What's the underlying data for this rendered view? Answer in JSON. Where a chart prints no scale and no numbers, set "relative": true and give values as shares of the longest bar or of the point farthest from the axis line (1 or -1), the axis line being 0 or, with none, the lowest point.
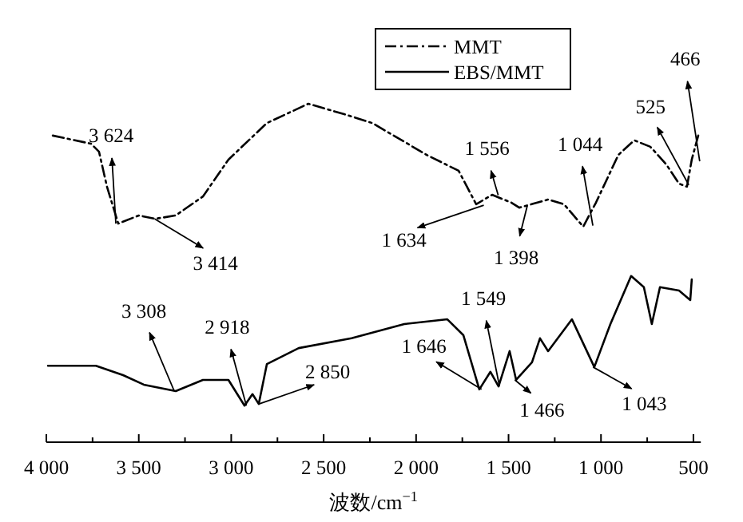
{
  "chart_data": {
    "type": "line",
    "relative": true,
    "xlabel": "波数/cm$^{−1}$",
    "xlim": [
      4000,
      460
    ],
    "xticks": [
      {
        "value": 4000,
        "label": "4 000"
      },
      {
        "value": 3750,
        "label": null
      },
      {
        "value": 3500,
        "label": "3 500"
      },
      {
        "value": 3250,
        "label": null
      },
      {
        "value": 3000,
        "label": "3 000"
      },
      {
        "value": 2750,
        "label": null
      },
      {
        "value": 2500,
        "label": "2 500"
      },
      {
        "value": 2250,
        "label": null
      },
      {
        "value": 2000,
        "label": "2 000"
      },
      {
        "value": 1750,
        "label": null
      },
      {
        "value": 1500,
        "label": "1 500"
      },
      {
        "value": 1250,
        "label": null
      },
      {
        "value": 1000,
        "label": "1 000"
      },
      {
        "value": 750,
        "label": null
      },
      {
        "value": 500,
        "label": "500"
      }
    ],
    "tick_labels": "x",
    "legend": "top",
    "series": [
      {
        "name": "MMT",
        "color": "#000000",
        "line_style": "dashdot",
        "x": [
          3965,
          3758,
          3715,
          3672,
          3611,
          3499,
          3412,
          3300,
          3153,
          3015,
          2807,
          2583,
          2375,
          2237,
          1943,
          1770,
          1675,
          1589,
          1485,
          1442,
          1286,
          1200,
          1096,
          1027,
          906,
          820,
          733,
          647,
          578,
          535,
          509,
          474
        ],
        "values": [
          0.906,
          0.882,
          0.858,
          0.755,
          0.646,
          0.67,
          0.66,
          0.67,
          0.726,
          0.835,
          0.943,
          1.0,
          0.967,
          0.943,
          0.849,
          0.802,
          0.703,
          0.731,
          0.708,
          0.693,
          0.717,
          0.703,
          0.637,
          0.708,
          0.849,
          0.892,
          0.873,
          0.821,
          0.764,
          0.755,
          0.835,
          0.906
        ]
      },
      {
        "name": "EBS/MMT",
        "color": "#000000",
        "line_style": "solid",
        "x": [
          3991,
          3732,
          3585,
          3473,
          3300,
          3153,
          3015,
          2928,
          2885,
          2851,
          2807,
          2635,
          2349,
          2064,
          1831,
          1744,
          1658,
          1598,
          1554,
          1494,
          1459,
          1373,
          1330,
          1286,
          1157,
          1036,
          949,
          837,
          768,
          725,
          681,
          578,
          517,
          509
        ],
        "values": [
          0.226,
          0.226,
          0.198,
          0.17,
          0.151,
          0.184,
          0.184,
          0.108,
          0.142,
          0.113,
          0.231,
          0.278,
          0.307,
          0.349,
          0.363,
          0.316,
          0.156,
          0.208,
          0.165,
          0.269,
          0.184,
          0.236,
          0.307,
          0.269,
          0.363,
          0.222,
          0.349,
          0.491,
          0.458,
          0.349,
          0.458,
          0.448,
          0.42,
          0.481
        ]
      }
    ],
    "annotations": [
      {
        "text": "3 624",
        "x": 3624,
        "y": 0.646
      },
      {
        "text": "3 414",
        "x": 3414,
        "y": 0.66
      },
      {
        "text": "1 634",
        "x": 1634,
        "y": 0.7
      },
      {
        "text": "1 556",
        "x": 1556,
        "y": 0.73
      },
      {
        "text": "1 398",
        "x": 1398,
        "y": 0.7
      },
      {
        "text": "1 044",
        "x": 1044,
        "y": 0.64
      },
      {
        "text": "525",
        "x": 525,
        "y": 0.76
      },
      {
        "text": "466",
        "x": 466,
        "y": 0.83
      },
      {
        "text": "3 308",
        "x": 3308,
        "y": 0.151
      },
      {
        "text": "2 918",
        "x": 2918,
        "y": 0.108
      },
      {
        "text": "2 850",
        "x": 2850,
        "y": 0.113
      },
      {
        "text": "1 646",
        "x": 1646,
        "y": 0.156
      },
      {
        "text": "1 549",
        "x": 1549,
        "y": 0.165
      },
      {
        "text": "1 466",
        "x": 1466,
        "y": 0.184
      },
      {
        "text": "1 043",
        "x": 1043,
        "y": 0.222
      }
    ]
  }
}
